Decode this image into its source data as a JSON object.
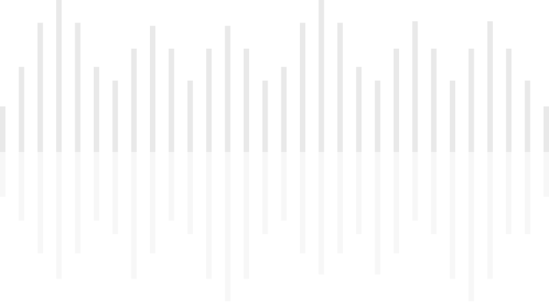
{
  "waveform": {
    "levels_above_baseline": [
      0.3,
      0.56,
      0.85,
      1.0,
      0.85,
      0.56,
      0.47,
      0.68,
      0.83,
      0.68,
      0.47,
      0.68,
      0.83,
      0.68,
      0.47,
      0.56,
      0.85,
      1.0,
      0.85,
      0.56,
      0.47,
      0.68,
      0.86,
      0.68,
      0.47,
      0.68,
      0.86,
      0.68,
      0.47,
      0.3
    ],
    "levels_below_baseline": [
      0.3,
      0.46,
      0.68,
      0.85,
      0.68,
      0.46,
      0.55,
      0.85,
      0.68,
      0.46,
      0.55,
      0.85,
      1.0,
      0.85,
      0.55,
      0.46,
      0.68,
      0.82,
      0.68,
      0.55,
      0.82,
      0.68,
      0.46,
      0.55,
      0.85,
      1.0,
      0.85,
      0.55,
      0.55,
      0.3
    ],
    "colors": {
      "upper_bar": "#e9e9e9",
      "lower_bar": "#f7f7f7",
      "background": "#ffffff"
    }
  }
}
